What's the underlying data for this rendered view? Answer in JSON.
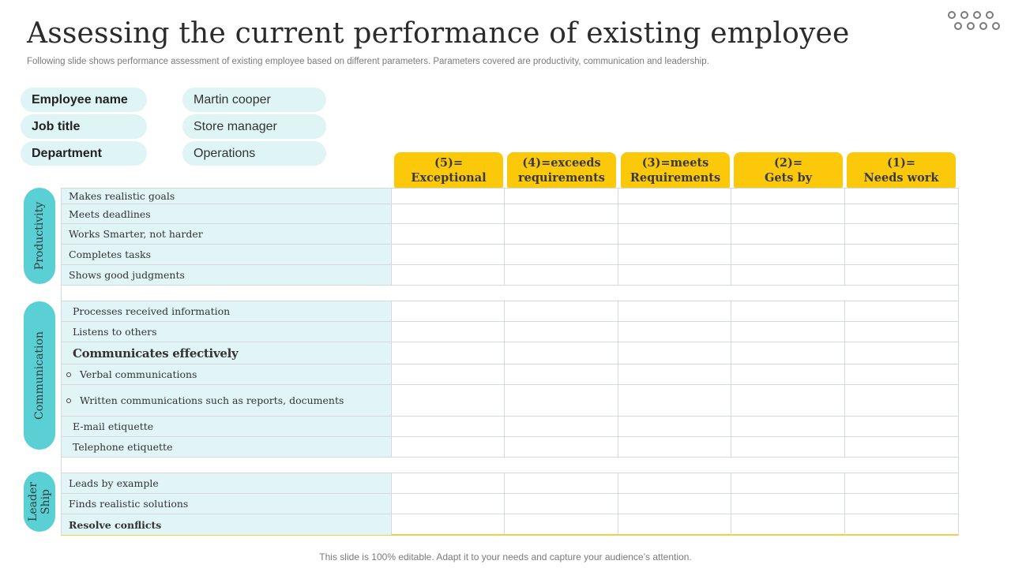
{
  "title": "Assessing the current performance of existing employee",
  "subtitle": "Following slide shows performance assessment of existing employee based on different parameters. Parameters covered are productivity, communication and leadership.",
  "menu_icon": "dots-grid-icon",
  "employee": [
    {
      "label": "Employee name",
      "value": "Martin cooper"
    },
    {
      "label": "Job title",
      "value": "Store manager"
    },
    {
      "label": "Department",
      "value": "Operations"
    }
  ],
  "ratings": [
    {
      "line1": "(5)=",
      "line2": "Exceptional"
    },
    {
      "line1": "(4)=exceeds",
      "line2": "requirements"
    },
    {
      "line1": "(3)=meets",
      "line2": "Requirements"
    },
    {
      "line1": "(2)=",
      "line2": "Gets by"
    },
    {
      "line1": "(1)=",
      "line2": "Needs work"
    }
  ],
  "sections": [
    {
      "name": "Productivity",
      "criteria": [
        "Makes realistic goals",
        "Meets deadlines",
        "Works Smarter, not harder",
        "Completes tasks",
        "Shows good judgments"
      ]
    },
    {
      "name": "Communication",
      "criteria": [
        "Processes received information",
        "Listens to others",
        "Communicates effectively",
        "Verbal communications",
        "Written communications such as reports, documents",
        "E-mail etiquette",
        "Telephone etiquette"
      ]
    },
    {
      "name": "Leader Ship",
      "criteria": [
        "Leads by example",
        "Finds realistic solutions",
        "Resolve conflicts"
      ]
    }
  ],
  "footer": "This slide is 100% editable. Adapt it to your needs and capture your audience’s attention.",
  "colors": {
    "accent_yellow": "#fcc80a",
    "accent_teal": "#5ad0d4",
    "light_teal": "#e1f5f6"
  }
}
